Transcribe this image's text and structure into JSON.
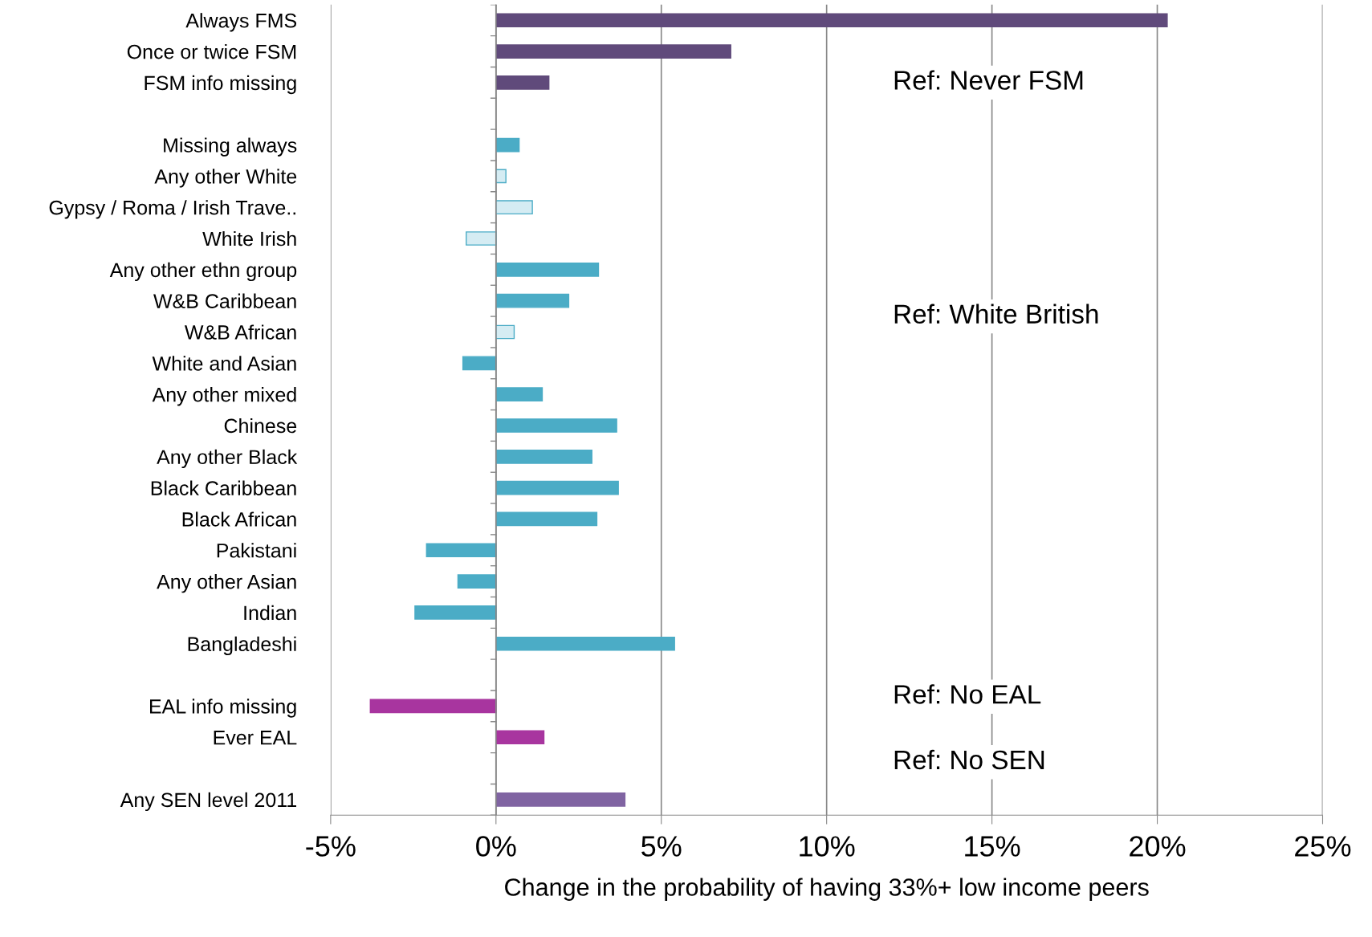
{
  "chart_data": {
    "type": "bar",
    "orientation": "horizontal",
    "xlabel": "Change in the probability of having 33%+ low income peers",
    "categories": [
      "Always FMS",
      "Once or twice FSM",
      "FSM info missing",
      null,
      "Missing always",
      "Any other White",
      "Gypsy / Roma / Irish Trave..",
      "White Irish",
      "Any other ethn group",
      "W&B Caribbean",
      "W&B African",
      "White and Asian",
      "Any other mixed",
      "Chinese",
      "Any other Black",
      "Black Caribbean",
      "Black African",
      "Pakistani",
      "Any other Asian",
      "Indian",
      "Bangladeshi",
      null,
      "EAL info missing",
      "Ever EAL",
      null,
      "Any SEN level 2011"
    ],
    "values": [
      20.3,
      7.1,
      1.6,
      null,
      0.7,
      0.3,
      1.1,
      -0.9,
      3.1,
      2.2,
      0.55,
      -1.0,
      1.4,
      3.65,
      2.9,
      3.7,
      3.05,
      -2.1,
      -1.15,
      -2.45,
      5.4,
      null,
      -3.8,
      1.45,
      null,
      3.9
    ],
    "colors": [
      "#604a7b",
      "#604a7b",
      "#604a7b",
      null,
      "#4bacc6",
      "#d5ecf3",
      "#d5ecf3",
      "#d5ecf3",
      "#4bacc6",
      "#4bacc6",
      "#d5ecf3",
      "#4bacc6",
      "#4bacc6",
      "#4bacc6",
      "#4bacc6",
      "#4bacc6",
      "#4bacc6",
      "#4bacc6",
      "#4bacc6",
      "#4bacc6",
      "#4bacc6",
      null,
      "#a8359f",
      "#a8359f",
      null,
      "#8064a2"
    ],
    "xlim": [
      -5,
      25
    ],
    "xticks": [
      {
        "value": -5,
        "label": "-5%"
      },
      {
        "value": 0,
        "label": "0%"
      },
      {
        "value": 5,
        "label": "5%"
      },
      {
        "value": 10,
        "label": "10%"
      },
      {
        "value": 15,
        "label": "15%"
      },
      {
        "value": 20,
        "label": "20%"
      },
      {
        "value": 25,
        "label": "25%"
      }
    ],
    "grid": "x",
    "legend": false,
    "annotations": [
      "Ref: Never FSM",
      "Ref: White British",
      "Ref: No EAL",
      "Ref: No SEN"
    ]
  }
}
